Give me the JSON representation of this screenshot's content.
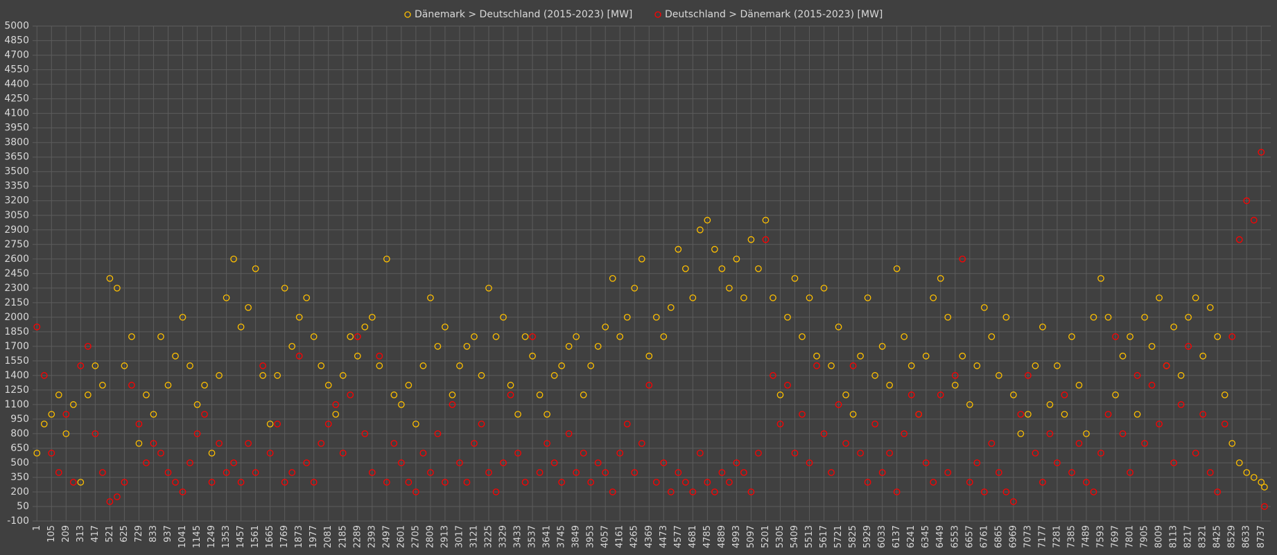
{
  "chart_data": {
    "type": "scatter",
    "x": [
      1,
      53,
      105,
      157,
      209,
      261,
      313,
      365,
      417,
      469,
      521,
      573,
      625,
      677,
      729,
      781,
      833,
      885,
      937,
      989,
      1041,
      1093,
      1145,
      1197,
      1249,
      1301,
      1353,
      1405,
      1457,
      1509,
      1561,
      1613,
      1665,
      1717,
      1769,
      1821,
      1873,
      1925,
      1977,
      2029,
      2081,
      2133,
      2185,
      2237,
      2289,
      2341,
      2393,
      2445,
      2497,
      2549,
      2601,
      2653,
      2705,
      2757,
      2809,
      2861,
      2913,
      2965,
      3017,
      3069,
      3121,
      3173,
      3225,
      3277,
      3329,
      3381,
      3433,
      3485,
      3537,
      3589,
      3641,
      3693,
      3745,
      3797,
      3849,
      3901,
      3953,
      4005,
      4057,
      4109,
      4161,
      4213,
      4265,
      4317,
      4369,
      4421,
      4473,
      4525,
      4577,
      4629,
      4681,
      4733,
      4785,
      4837,
      4889,
      4941,
      4993,
      5045,
      5097,
      5149,
      5201,
      5253,
      5305,
      5357,
      5409,
      5461,
      5513,
      5565,
      5617,
      5669,
      5721,
      5773,
      5825,
      5877,
      5929,
      5981,
      6033,
      6085,
      6137,
      6189,
      6241,
      6293,
      6345,
      6397,
      6449,
      6501,
      6553,
      6605,
      6657,
      6709,
      6761,
      6813,
      6865,
      6917,
      6969,
      7021,
      7073,
      7125,
      7177,
      7229,
      7281,
      7333,
      7385,
      7437,
      7489,
      7541,
      7593,
      7645,
      7697,
      7749,
      7801,
      7853,
      7905,
      7957,
      8009,
      8061,
      8113,
      8165,
      8217,
      8269,
      8321,
      8373,
      8425,
      8477,
      8529,
      8581,
      8633,
      8685,
      8737,
      8760
    ],
    "series": [
      {
        "name": "Dänemark > Deutschland (2015-2023) [MW]",
        "color": "#ffc000",
        "values": [
          600,
          900,
          1000,
          1200,
          800,
          1100,
          300,
          1200,
          1500,
          1300,
          2400,
          2300,
          1500,
          1800,
          700,
          1200,
          1000,
          1800,
          1300,
          1600,
          2000,
          1500,
          1100,
          1300,
          600,
          1400,
          2200,
          2600,
          1900,
          2100,
          2500,
          1400,
          900,
          1400,
          2300,
          1700,
          2000,
          2200,
          1800,
          1500,
          1300,
          1000,
          1400,
          1800,
          1600,
          1900,
          2000,
          1500,
          2600,
          1200,
          1100,
          1300,
          900,
          1500,
          2200,
          1700,
          1900,
          1200,
          1500,
          1700,
          1800,
          1400,
          2300,
          1800,
          2000,
          1300,
          1000,
          1800,
          1600,
          1200,
          1000,
          1400,
          1500,
          1700,
          1800,
          1200,
          1500,
          1700,
          1900,
          2400,
          1800,
          2000,
          2300,
          2600,
          1600,
          2000,
          1800,
          2100,
          2700,
          2500,
          2200,
          2900,
          3000,
          2700,
          2500,
          2300,
          2600,
          2200,
          2800,
          2500,
          3000,
          2200,
          1200,
          2000,
          2400,
          1800,
          2200,
          1600,
          2300,
          1500,
          1900,
          1200,
          1000,
          1600,
          2200,
          1400,
          1700,
          1300,
          2500,
          1800,
          1500,
          1000,
          1600,
          2200,
          2400,
          2000,
          1300,
          1600,
          1100,
          1500,
          2100,
          1800,
          1400,
          2000,
          1200,
          800,
          1000,
          1500,
          1900,
          1100,
          1500,
          1000,
          1800,
          1300,
          800,
          2000,
          2400,
          2000,
          1200,
          1600,
          1800,
          1000,
          2000,
          1700,
          2200,
          1500,
          1900,
          1400,
          2000,
          2200,
          1600,
          2100,
          1800,
          1200,
          700,
          500,
          400,
          350,
          300,
          250
        ]
      },
      {
        "name": "Deutschland > Dänemark (2015-2023) [MW]",
        "color": "#ff0000",
        "values": [
          1900,
          1400,
          600,
          400,
          1000,
          300,
          1500,
          1700,
          800,
          400,
          100,
          150,
          300,
          1300,
          900,
          500,
          700,
          600,
          400,
          300,
          200,
          500,
          800,
          1000,
          300,
          700,
          400,
          500,
          300,
          700,
          400,
          1500,
          600,
          900,
          300,
          400,
          1600,
          500,
          300,
          700,
          900,
          1100,
          600,
          1200,
          1800,
          800,
          400,
          1600,
          300,
          700,
          500,
          300,
          200,
          600,
          400,
          800,
          300,
          1100,
          500,
          300,
          700,
          900,
          400,
          200,
          500,
          1200,
          600,
          300,
          1800,
          400,
          700,
          500,
          300,
          800,
          400,
          600,
          300,
          500,
          400,
          200,
          600,
          900,
          400,
          700,
          1300,
          300,
          500,
          200,
          400,
          300,
          200,
          600,
          300,
          200,
          400,
          300,
          500,
          400,
          200,
          600,
          2800,
          1400,
          900,
          1300,
          600,
          1000,
          500,
          1500,
          800,
          400,
          1100,
          700,
          1500,
          600,
          300,
          900,
          400,
          600,
          200,
          800,
          1200,
          1000,
          500,
          300,
          1200,
          400,
          1400,
          2600,
          300,
          500,
          200,
          700,
          400,
          200,
          100,
          1000,
          1400,
          600,
          300,
          800,
          500,
          1200,
          400,
          700,
          300,
          200,
          600,
          1000,
          1800,
          800,
          400,
          1400,
          700,
          1300,
          900,
          1500,
          500,
          1100,
          1700,
          600,
          1000,
          400,
          200,
          900,
          1800,
          2800,
          3200,
          3000,
          3700,
          50
        ]
      }
    ],
    "xlim": [
      -30,
      8805
    ],
    "xticks": [
      1,
      105,
      209,
      313,
      417,
      521,
      625,
      729,
      833,
      937,
      1041,
      1145,
      1249,
      1353,
      1457,
      1561,
      1665,
      1769,
      1873,
      1977,
      2081,
      2185,
      2289,
      2393,
      2497,
      2601,
      2705,
      2809,
      2913,
      3017,
      3121,
      3225,
      3329,
      3433,
      3537,
      3641,
      3745,
      3849,
      3953,
      4057,
      4161,
      4265,
      4369,
      4473,
      4577,
      4681,
      4785,
      4889,
      4993,
      5097,
      5201,
      5305,
      5409,
      5513,
      5617,
      5721,
      5825,
      5929,
      6033,
      6137,
      6241,
      6345,
      6449,
      6553,
      6657,
      6761,
      6865,
      6969,
      7073,
      7177,
      7281,
      7385,
      7489,
      7593,
      7697,
      7801,
      7905,
      8009,
      8113,
      8217,
      8321,
      8425,
      8529,
      8633,
      8737
    ],
    "ylim": [
      -100,
      5000
    ],
    "yticks": [
      -100,
      50,
      200,
      350,
      500,
      650,
      800,
      950,
      1100,
      1250,
      1400,
      1550,
      1700,
      1850,
      2000,
      2150,
      2300,
      2450,
      2600,
      2750,
      2900,
      3050,
      3200,
      3350,
      3500,
      3650,
      3800,
      3950,
      4100,
      4250,
      4400,
      4550,
      4700,
      4850,
      5000
    ],
    "grid": true,
    "legend": "top"
  }
}
